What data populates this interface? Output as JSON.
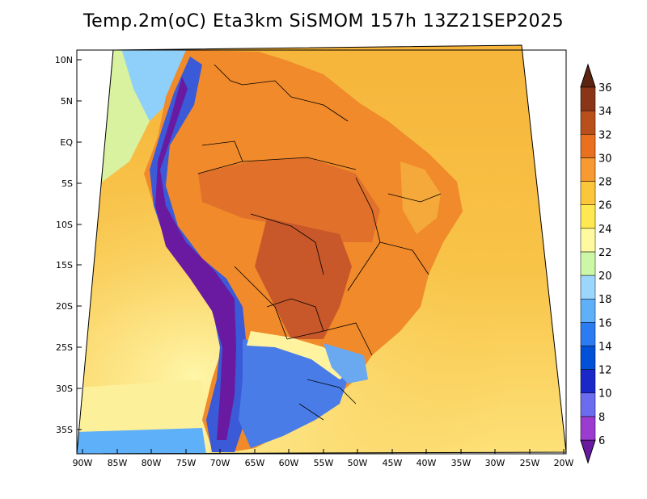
{
  "title": "Temp.2m(oC) Eta3km SiSMOM 157h 13Z21SEP2025",
  "lat_labels": [
    "10N",
    "5N",
    "EQ",
    "5S",
    "10S",
    "15S",
    "20S",
    "25S",
    "30S",
    "35S"
  ],
  "lon_labels": [
    "90W",
    "85W",
    "80W",
    "75W",
    "70W",
    "65W",
    "60W",
    "55W",
    "50W",
    "45W",
    "40W",
    "35W",
    "30W",
    "25W",
    "20W"
  ],
  "colorbar": {
    "labels": [
      "6",
      "8",
      "10",
      "12",
      "14",
      "16",
      "18",
      "20",
      "22",
      "24",
      "26",
      "28",
      "30",
      "32",
      "34",
      "36"
    ],
    "colors": [
      "#6a1aa0",
      "#9b3bd0",
      "#6c6cf0",
      "#1a28c8",
      "#0050d8",
      "#2b7cf0",
      "#5eb0f8",
      "#9cd6fc",
      "#cdf7a8",
      "#fffaa0",
      "#ffe850",
      "#fcc63a",
      "#f79a32",
      "#e8701e",
      "#b8501c",
      "#8a3418",
      "#5c2410"
    ]
  },
  "colors": {
    "ocean": "#f8c448",
    "land_warm": "#e8782a",
    "land_hot": "#c85a20",
    "andes_cold": "#5a2a9a",
    "south_cool": "#5a8ce8",
    "map_frame": "#000000"
  }
}
